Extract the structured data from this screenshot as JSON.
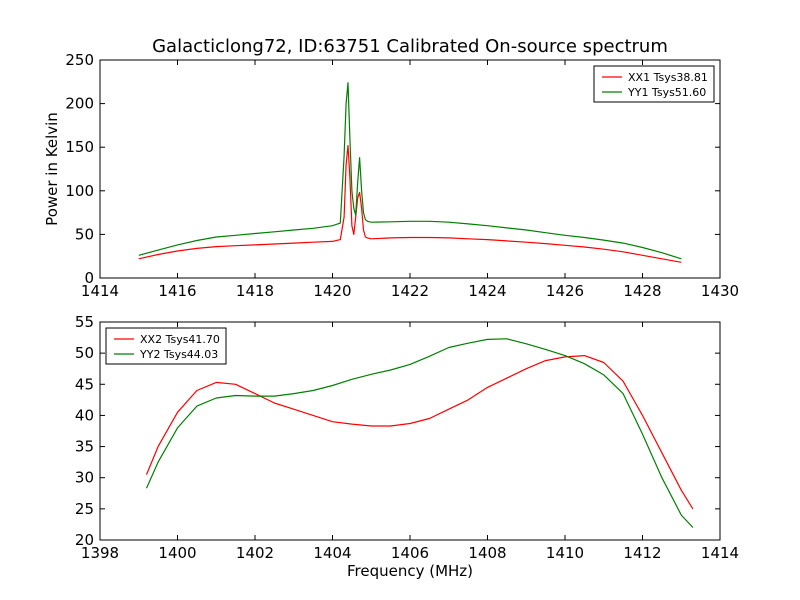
{
  "chart_data": [
    {
      "type": "line",
      "title": "Galacticlong72, ID:63751 Calibrated On-source spectrum",
      "xlabel": "",
      "ylabel": "Power in Kelvin",
      "xlim": [
        1414,
        1430
      ],
      "ylim": [
        0,
        250
      ],
      "xticks": [
        1414,
        1416,
        1418,
        1420,
        1422,
        1424,
        1426,
        1428,
        1430
      ],
      "yticks": [
        0,
        50,
        100,
        150,
        200,
        250
      ],
      "grid": false,
      "legend_position": "top-right",
      "series": [
        {
          "name": "XX1 Tsys38.81",
          "color": "#ff0000",
          "x": [
            1415.0,
            1415.5,
            1416.0,
            1416.5,
            1417.0,
            1417.5,
            1418.0,
            1418.5,
            1419.0,
            1419.5,
            1420.0,
            1420.2,
            1420.3,
            1420.35,
            1420.4,
            1420.45,
            1420.5,
            1420.55,
            1420.6,
            1420.65,
            1420.7,
            1420.75,
            1420.8,
            1420.85,
            1420.9,
            1421.0,
            1421.5,
            1422.0,
            1422.5,
            1423.0,
            1423.5,
            1424.0,
            1424.5,
            1425.0,
            1425.5,
            1426.0,
            1426.5,
            1427.0,
            1427.5,
            1428.0,
            1428.5,
            1429.0
          ],
          "y": [
            22,
            27,
            31,
            34,
            36,
            37,
            38,
            39,
            40,
            41,
            42,
            44,
            70,
            130,
            152,
            115,
            60,
            50,
            70,
            92,
            98,
            80,
            55,
            47,
            46,
            45,
            46,
            46.5,
            46.5,
            46,
            45,
            44,
            42.5,
            41,
            39.5,
            37.5,
            35.5,
            33,
            30,
            26,
            22,
            18
          ]
        },
        {
          "name": "YY1 Tsys51.60",
          "color": "#008000",
          "x": [
            1415.0,
            1415.5,
            1416.0,
            1416.5,
            1417.0,
            1417.5,
            1418.0,
            1418.5,
            1419.0,
            1419.5,
            1420.0,
            1420.2,
            1420.3,
            1420.35,
            1420.4,
            1420.45,
            1420.5,
            1420.55,
            1420.6,
            1420.65,
            1420.7,
            1420.75,
            1420.8,
            1420.85,
            1420.9,
            1421.0,
            1421.5,
            1422.0,
            1422.5,
            1423.0,
            1423.5,
            1424.0,
            1424.5,
            1425.0,
            1425.5,
            1426.0,
            1426.5,
            1427.0,
            1427.5,
            1428.0,
            1428.5,
            1429.0
          ],
          "y": [
            26,
            32,
            38,
            43,
            47,
            49,
            51,
            53,
            55,
            57,
            60,
            63,
            140,
            200,
            224,
            160,
            100,
            80,
            72,
            110,
            138,
            100,
            75,
            67,
            65,
            64,
            64.5,
            65,
            65,
            64,
            62,
            60,
            57.5,
            55,
            52,
            49,
            46.5,
            43.5,
            40,
            35,
            29,
            22
          ]
        }
      ]
    },
    {
      "type": "line",
      "title": "",
      "xlabel": "Frequency (MHz)",
      "ylabel": "",
      "xlim": [
        1398,
        1414
      ],
      "ylim": [
        20,
        55
      ],
      "xticks": [
        1398,
        1400,
        1402,
        1404,
        1406,
        1408,
        1410,
        1412,
        1414
      ],
      "yticks": [
        20,
        25,
        30,
        35,
        40,
        45,
        50,
        55
      ],
      "grid": false,
      "legend_position": "top-left",
      "series": [
        {
          "name": "XX2 Tsys41.70",
          "color": "#ff0000",
          "x": [
            1399.2,
            1399.5,
            1400.0,
            1400.5,
            1401.0,
            1401.5,
            1402.0,
            1402.5,
            1403.0,
            1403.5,
            1404.0,
            1404.5,
            1405.0,
            1405.5,
            1406.0,
            1406.5,
            1407.0,
            1407.5,
            1408.0,
            1408.5,
            1409.0,
            1409.5,
            1410.0,
            1410.5,
            1411.0,
            1411.5,
            1412.0,
            1412.5,
            1413.0,
            1413.3
          ],
          "y": [
            30.5,
            35,
            40.5,
            44,
            45.3,
            45,
            43.5,
            42,
            41,
            40,
            39,
            38.6,
            38.3,
            38.3,
            38.7,
            39.5,
            41,
            42.5,
            44.5,
            46,
            47.5,
            48.8,
            49.4,
            49.6,
            48.5,
            45.5,
            40,
            34,
            28,
            25
          ]
        },
        {
          "name": "YY2 Tsys44.03",
          "color": "#008000",
          "x": [
            1399.2,
            1399.5,
            1400.0,
            1400.5,
            1401.0,
            1401.5,
            1402.0,
            1402.5,
            1403.0,
            1403.5,
            1404.0,
            1404.5,
            1405.0,
            1405.5,
            1406.0,
            1406.5,
            1407.0,
            1407.5,
            1408.0,
            1408.5,
            1409.0,
            1409.5,
            1410.0,
            1410.5,
            1411.0,
            1411.5,
            1412.0,
            1412.5,
            1413.0,
            1413.3
          ],
          "y": [
            28.3,
            32.5,
            38,
            41.5,
            42.8,
            43.2,
            43.1,
            43.1,
            43.5,
            44,
            44.8,
            45.8,
            46.6,
            47.3,
            48.2,
            49.5,
            50.9,
            51.6,
            52.2,
            52.3,
            51.5,
            50.6,
            49.6,
            48.3,
            46.5,
            43.5,
            37,
            30,
            24,
            22
          ]
        }
      ]
    }
  ]
}
